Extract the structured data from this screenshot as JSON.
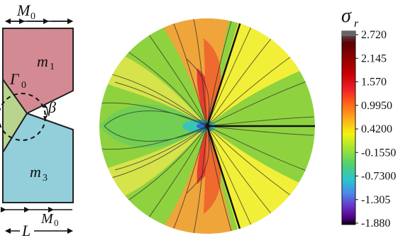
{
  "left_schematic": {
    "top_dimension_label": "M",
    "top_dimension_sub": "0",
    "region_top_label": "m",
    "region_top_sub": "1",
    "region_bottom_label": "m",
    "region_bottom_sub": "3",
    "boundary_label": "Γ",
    "boundary_sub": "0",
    "angle_label": "β",
    "bottom_length_label": "L",
    "bottom_dimension_label": "M",
    "bottom_dimension_sub": "0",
    "colors": {
      "region_top": "#d48a93",
      "region_bottom": "#92cfda",
      "region_left": "#b8d48f"
    }
  },
  "contour_plot": {
    "colors": {
      "background_green": "#8fd23f",
      "left_green": "#72cf53",
      "cyan": "#38c5b5",
      "yellow_green": "#d7e34b",
      "yellow": "#f2ef38",
      "orange": "#f0a53b",
      "orange_red": "#ef6a2e",
      "red": "#e63d2e",
      "black": "#111111"
    }
  },
  "colorbar": {
    "title": "σ",
    "title_sub": "r",
    "ticks": [
      "2.720",
      "2.145",
      "1.570",
      "0.9950",
      "0.4200",
      "-0.1550",
      "-0.7300",
      "-1.305",
      "-1.880"
    ],
    "gradient_colors": [
      "#666666",
      "#5b0008",
      "#8b0000",
      "#c80000",
      "#f01f2a",
      "#ff6a18",
      "#ffb11c",
      "#f4f20f",
      "#9de433",
      "#4fd170",
      "#2cc4d2",
      "#4a88e8",
      "#6b2cc8",
      "#4a007a",
      "#000000"
    ]
  }
}
